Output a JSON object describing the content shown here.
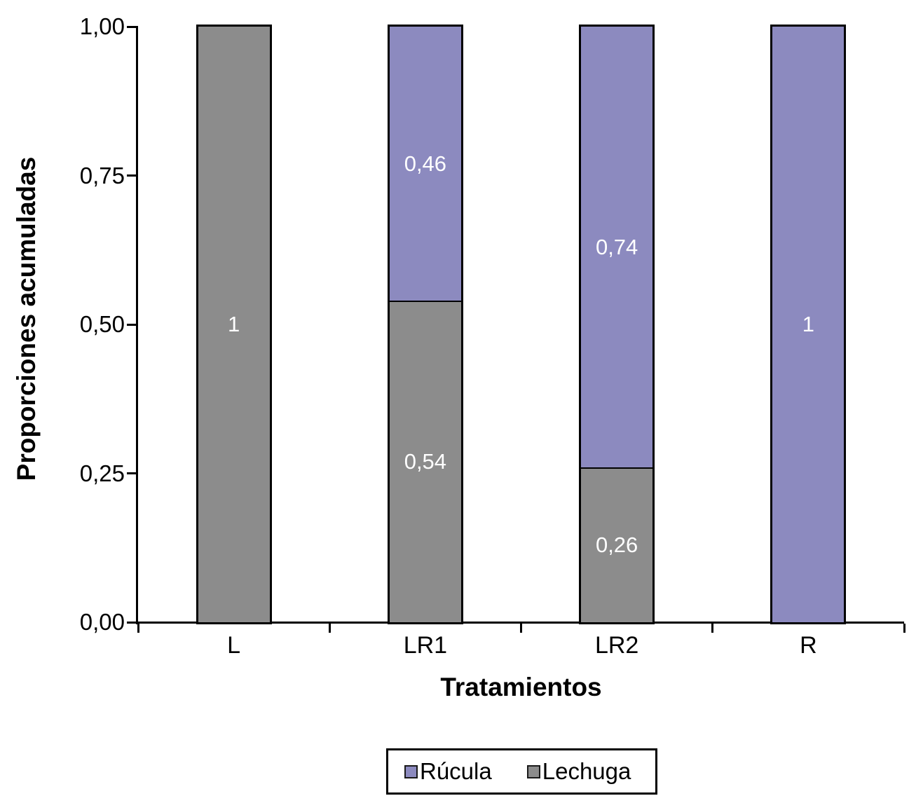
{
  "chart_data": {
    "type": "bar",
    "stacked": true,
    "title": "",
    "xlabel": "Tratamientos",
    "ylabel": "Proporciones acumuladas",
    "categories": [
      "L",
      "LR1",
      "LR2",
      "R"
    ],
    "series": [
      {
        "name": "Rúcula",
        "color": "#8C8ABF",
        "values": [
          0,
          0.46,
          0.74,
          1
        ],
        "labels": [
          "",
          "0,46",
          "0,74",
          "1"
        ]
      },
      {
        "name": "Lechuga",
        "color": "#8C8C8C",
        "values": [
          1,
          0.54,
          0.26,
          0
        ],
        "labels": [
          "1",
          "0,54",
          "0,26",
          ""
        ]
      }
    ],
    "ylim": [
      0,
      1
    ],
    "yticks": [
      {
        "value": 0.0,
        "label": "0,00"
      },
      {
        "value": 0.25,
        "label": "0,25"
      },
      {
        "value": 0.5,
        "label": "0,50"
      },
      {
        "value": 0.75,
        "label": "0,75"
      },
      {
        "value": 1.0,
        "label": "1,00"
      }
    ],
    "grid": false,
    "legend": {
      "position": "bottom",
      "items": [
        {
          "label": "Rúcula",
          "color": "#8C8ABF"
        },
        {
          "label": "Lechuga",
          "color": "#8C8C8C"
        }
      ]
    },
    "bar_label_color": "#FFFFFF",
    "axis_color": "#000000",
    "background_color": "#FFFFFF"
  }
}
